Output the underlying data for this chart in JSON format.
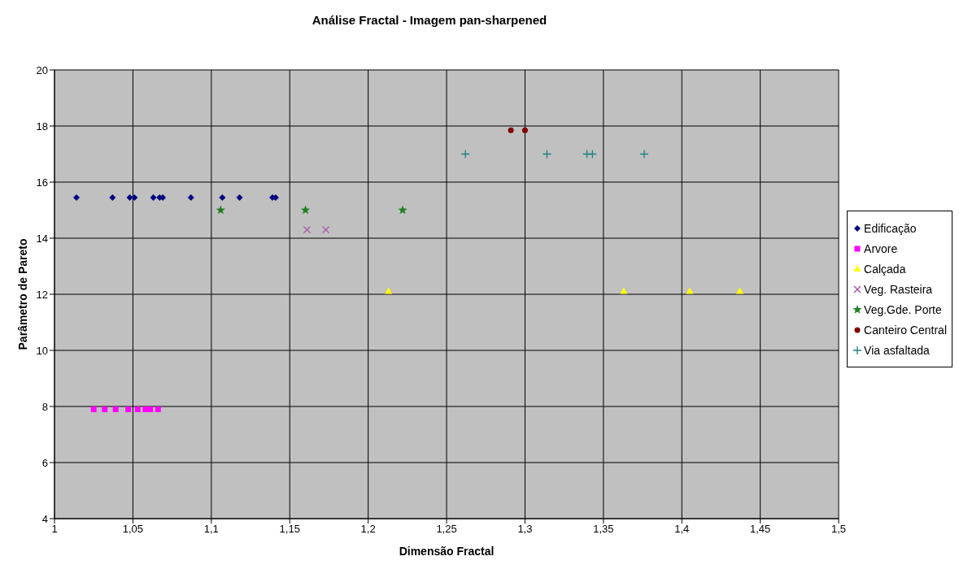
{
  "chart_data": {
    "type": "scatter",
    "title": "Análise Fractal - Imagem pan-sharpened",
    "xlabel": "Dimensão Fractal",
    "ylabel": "Parâmetro de Pareto",
    "xlim": [
      1,
      1.5
    ],
    "xticks": [
      {
        "value": 1,
        "label": "1"
      },
      {
        "value": 1.05,
        "label": "1,05"
      },
      {
        "value": 1.1,
        "label": "1,1"
      },
      {
        "value": 1.15,
        "label": "1,15"
      },
      {
        "value": 1.2,
        "label": "1,2"
      },
      {
        "value": 1.25,
        "label": "1,25"
      },
      {
        "value": 1.3,
        "label": "1,3"
      },
      {
        "value": 1.35,
        "label": "1,35"
      },
      {
        "value": 1.4,
        "label": "1,4"
      },
      {
        "value": 1.45,
        "label": "1,45"
      },
      {
        "value": 1.5,
        "label": "1,5"
      }
    ],
    "ylim": [
      4,
      20
    ],
    "yticks": [
      4,
      6,
      8,
      10,
      12,
      14,
      16,
      18,
      20
    ],
    "grid": true,
    "legend": "right",
    "series": [
      {
        "name": "Edificação",
        "color": "#000080",
        "marker": "diamond",
        "x": [
          1.014,
          1.037,
          1.048,
          1.051,
          1.063,
          1.067,
          1.069,
          1.087,
          1.107,
          1.118,
          1.139,
          1.141
        ],
        "values": [
          15.45,
          15.45,
          15.45,
          15.45,
          15.45,
          15.45,
          15.45,
          15.45,
          15.45,
          15.45,
          15.45,
          15.45
        ]
      },
      {
        "name": "Arvore",
        "color": "#ff00ff",
        "marker": "square",
        "x": [
          1.025,
          1.032,
          1.039,
          1.047,
          1.053,
          1.058,
          1.061,
          1.066
        ],
        "values": [
          7.9,
          7.9,
          7.9,
          7.9,
          7.9,
          7.9,
          7.9,
          7.9
        ]
      },
      {
        "name": "Calçada",
        "color": "#ffff00",
        "marker": "triangle",
        "x": [
          1.213,
          1.363,
          1.405,
          1.437
        ],
        "values": [
          12.1,
          12.1,
          12.1,
          12.1
        ]
      },
      {
        "name": "Veg. Rasteira",
        "color": "#a050a0",
        "marker": "cross",
        "x": [
          1.161,
          1.173
        ],
        "values": [
          14.3,
          14.3
        ]
      },
      {
        "name": "Veg.Gde. Porte",
        "color": "#208020",
        "marker": "star",
        "x": [
          1.106,
          1.16,
          1.222
        ],
        "values": [
          15,
          15,
          15
        ]
      },
      {
        "name": "Canteiro Central",
        "color": "#800000",
        "marker": "circle",
        "x": [
          1.291,
          1.3
        ],
        "values": [
          17.85,
          17.85
        ]
      },
      {
        "name": "Via asfaltada",
        "color": "#208080",
        "marker": "plus",
        "x": [
          1.262,
          1.314,
          1.3395,
          1.343,
          1.376
        ],
        "values": [
          17,
          17,
          17,
          17,
          17
        ]
      }
    ]
  }
}
